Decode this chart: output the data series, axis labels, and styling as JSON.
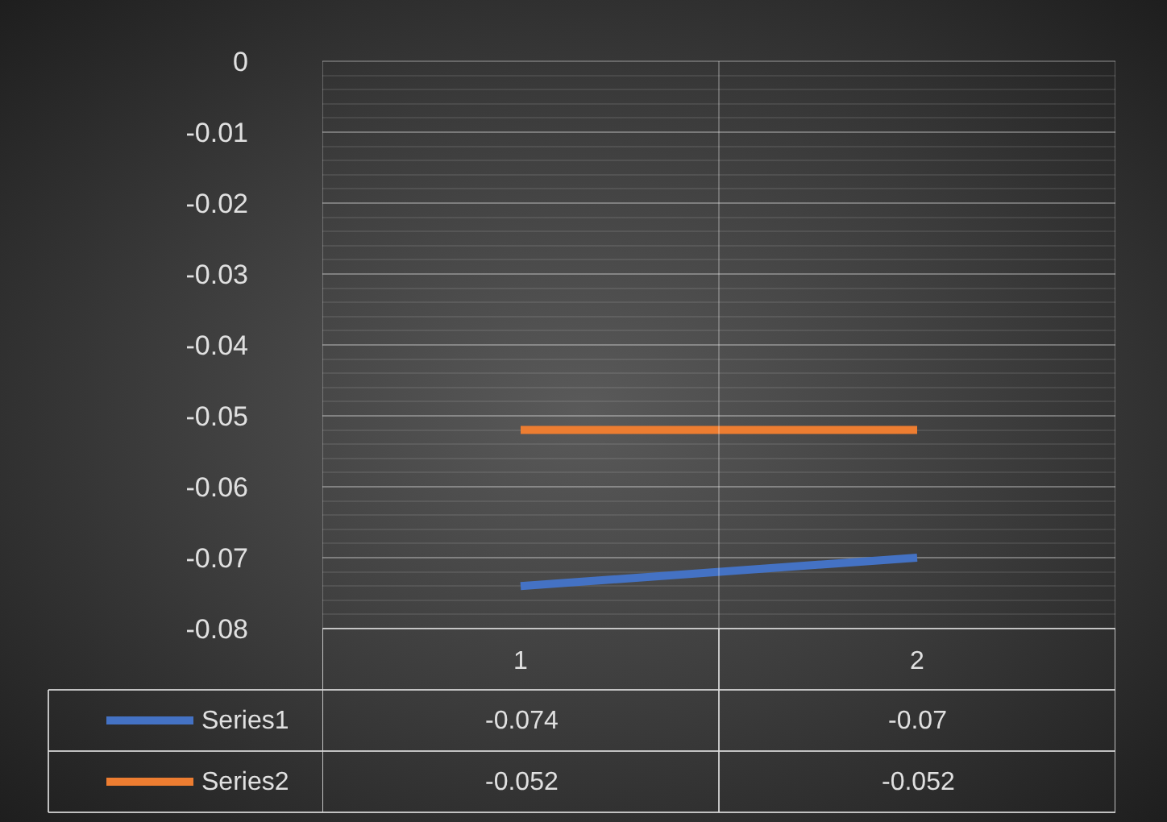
{
  "chart_data": {
    "type": "line",
    "categories": [
      "1",
      "2"
    ],
    "series": [
      {
        "name": "Series1",
        "color": "#4472c4",
        "values": [
          -0.074,
          -0.07
        ]
      },
      {
        "name": "Series2",
        "color": "#ed7d31",
        "values": [
          -0.052,
          -0.052
        ]
      }
    ],
    "ylim": [
      -0.08,
      0
    ],
    "yticks": [
      0,
      -0.01,
      -0.02,
      -0.03,
      -0.04,
      -0.05,
      -0.06,
      -0.07,
      -0.08
    ],
    "grid": true,
    "legend": "bottom left",
    "data_labels": true,
    "marker": "none",
    "line_style": "solid"
  }
}
